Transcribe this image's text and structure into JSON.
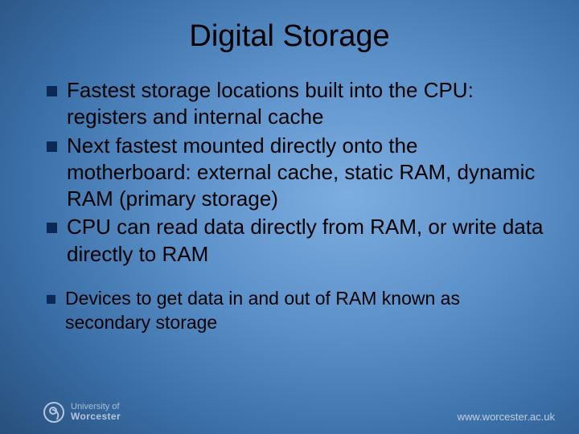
{
  "title": "Digital Storage",
  "bullets_main": [
    "Fastest storage locations built into the CPU: registers and internal cache",
    "Next fastest mounted directly onto the motherboard: external cache, static RAM, dynamic RAM (primary storage)",
    "CPU can read data directly from RAM, or write data directly to RAM"
  ],
  "bullets_secondary": [
    "Devices to get data in and out of RAM known as secondary storage"
  ],
  "footer": {
    "logo_line1": "University of",
    "logo_line2": "Worcester",
    "url": "www.worcester.ac.uk"
  },
  "style": {
    "slide_width": 720,
    "slide_height": 540,
    "title_fontsize": 38,
    "title_color": "#000000",
    "main_bullet_fontsize": 26,
    "secondary_bullet_fontsize": 23,
    "bullet_text_color": "#000000",
    "bullet_marker_color": "#0a2a55",
    "bullet_marker_size_main": 13,
    "bullet_marker_size_secondary": 11,
    "background_gradient": {
      "type": "radial",
      "stops": [
        {
          "color": "#7daee0",
          "at": "0%"
        },
        {
          "color": "#5a8fc8",
          "at": "25%"
        },
        {
          "color": "#3a6fa8",
          "at": "45%"
        },
        {
          "color": "#23456f",
          "at": "70%"
        },
        {
          "color": "#102a4a",
          "at": "100%"
        }
      ]
    },
    "footer_text_color": "#cfd9e6",
    "footer_fontsize": 13,
    "font_family": "Arial"
  }
}
